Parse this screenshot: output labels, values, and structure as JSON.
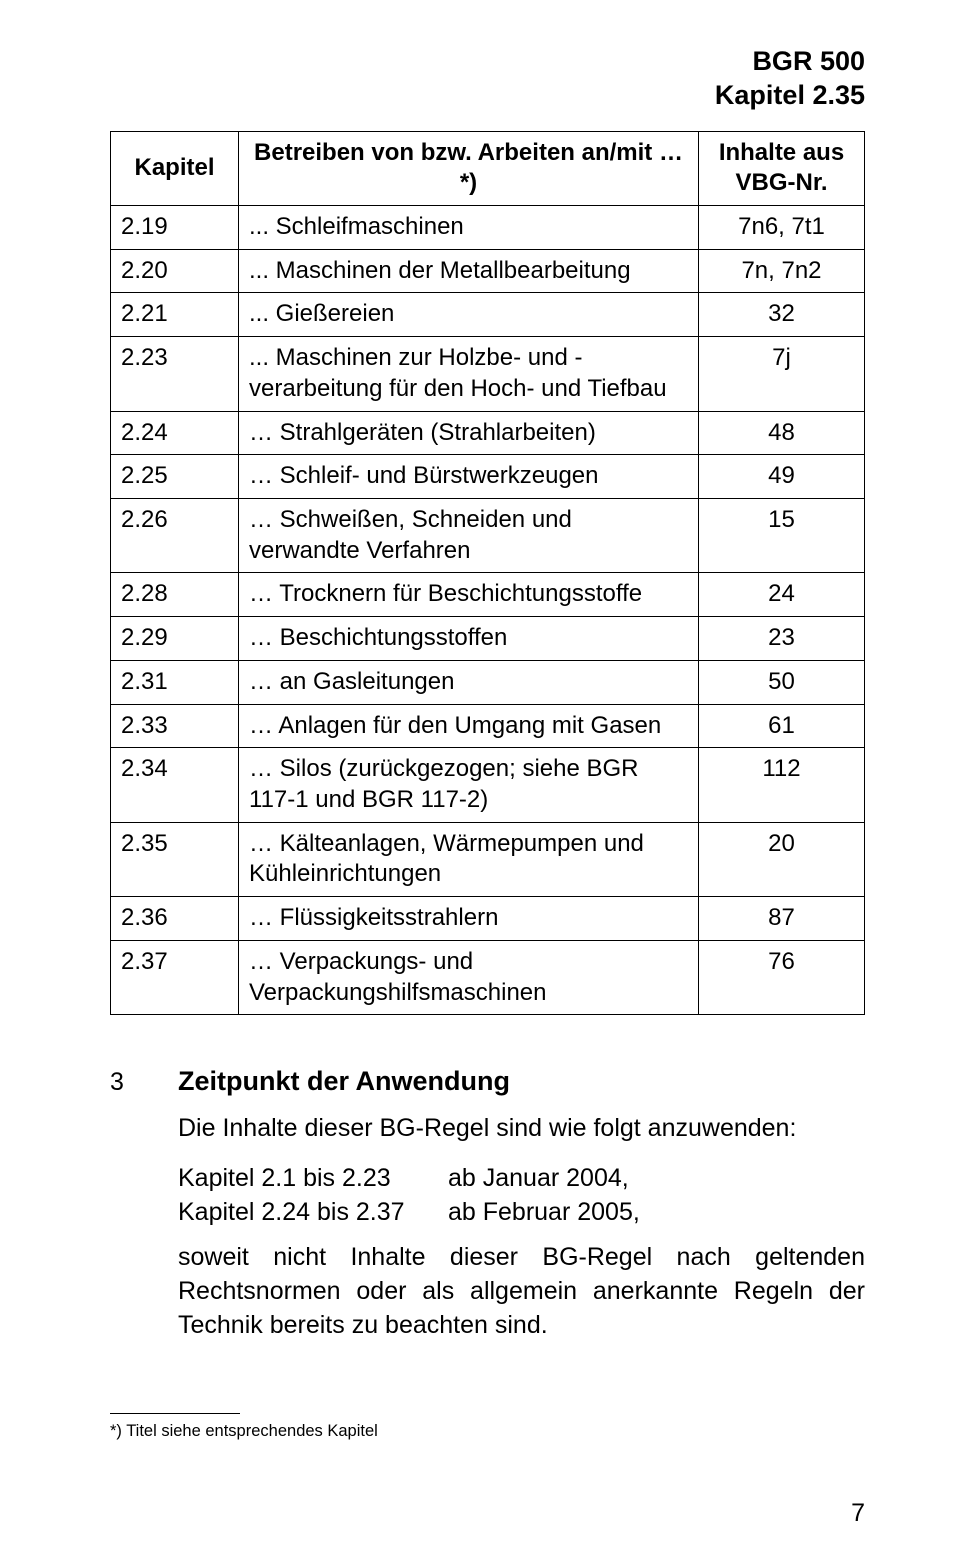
{
  "header": {
    "doc_id": "BGR 500",
    "chapter": "Kapitel 2.35"
  },
  "table": {
    "columns": {
      "kapitel": "Kapitel",
      "betreiben": "Betreiben von bzw. Arbeiten an/mit …*)",
      "inhalte": "Inhalte aus VBG-Nr."
    },
    "rows": [
      {
        "kap": "2.19",
        "desc": "... Schleifmaschinen",
        "inh": "7n6, 7t1"
      },
      {
        "kap": "2.20",
        "desc": "... Maschinen der Metallbearbeitung",
        "inh": "7n, 7n2"
      },
      {
        "kap": "2.21",
        "desc": "... Gießereien",
        "inh": "32"
      },
      {
        "kap": "2.23",
        "desc": "... Maschinen zur Holzbe- und -verarbeitung für den Hoch- und Tiefbau",
        "inh": "7j"
      },
      {
        "kap": "2.24",
        "desc": "… Strahlgeräten (Strahlarbeiten)",
        "inh": "48"
      },
      {
        "kap": "2.25",
        "desc": "… Schleif- und Bürstwerkzeugen",
        "inh": "49"
      },
      {
        "kap": "2.26",
        "desc": "… Schweißen, Schneiden und verwandte Verfahren",
        "inh": "15"
      },
      {
        "kap": "2.28",
        "desc": "… Trocknern für Beschichtungsstoffe",
        "inh": "24"
      },
      {
        "kap": "2.29",
        "desc": "… Beschichtungsstoffen",
        "inh": "23"
      },
      {
        "kap": "2.31",
        "desc": "… an Gasleitungen",
        "inh": "50"
      },
      {
        "kap": "2.33",
        "desc": "… Anlagen für den Umgang mit Gasen",
        "inh": "61"
      },
      {
        "kap": "2.34",
        "desc": "… Silos (zurückgezogen; siehe BGR 117-1 und BGR 117-2)",
        "inh": "112"
      },
      {
        "kap": "2.35",
        "desc": "… Kälteanlagen, Wärmepumpen und Kühleinrichtungen",
        "inh": "20"
      },
      {
        "kap": "2.36",
        "desc": "… Flüssigkeitsstrahlern",
        "inh": "87"
      },
      {
        "kap": "2.37",
        "desc": "… Verpackungs- und Verpackungshilfsmaschinen",
        "inh": "76"
      }
    ]
  },
  "section3": {
    "number": "3",
    "title": "Zeitpunkt der Anwendung",
    "intro": "Die Inhalte dieser BG-Regel sind wie folgt anzuwenden:",
    "lines": [
      {
        "k": "Kapitel 2.1 bis 2.23",
        "v": "ab Januar 2004,"
      },
      {
        "k": "Kapitel 2.24 bis 2.37",
        "v": "ab Februar 2005,"
      }
    ],
    "para": "soweit nicht Inhalte dieser BG-Regel nach geltenden Rechtsnormen oder als allgemein anerkannte Regeln der Technik bereits zu beachten sind."
  },
  "footnote": "*) Titel siehe entsprechendes Kapitel",
  "page_number": "7"
}
